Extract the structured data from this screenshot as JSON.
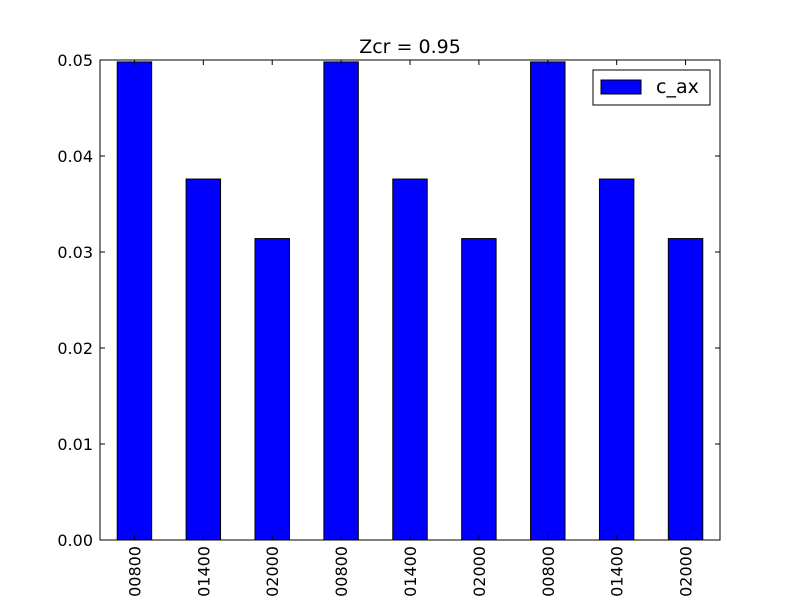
{
  "chart_data": {
    "type": "bar",
    "title": "Zcr = 0.95",
    "xlabel": "",
    "ylabel": "",
    "categories": [
      "00800",
      "01400",
      "02000",
      "00800",
      "01400",
      "02000",
      "00800",
      "01400",
      "02000"
    ],
    "series": [
      {
        "name": "c_ax",
        "values": [
          0.0498,
          0.0376,
          0.0314,
          0.0498,
          0.0376,
          0.0314,
          0.0498,
          0.0376,
          0.0314
        ],
        "color": "#0000ff"
      }
    ],
    "ylim": [
      0,
      0.05
    ],
    "yticks": [
      "0.00",
      "0.01",
      "0.02",
      "0.03",
      "0.04",
      "0.05"
    ],
    "grid": false,
    "legend": "top-right"
  }
}
